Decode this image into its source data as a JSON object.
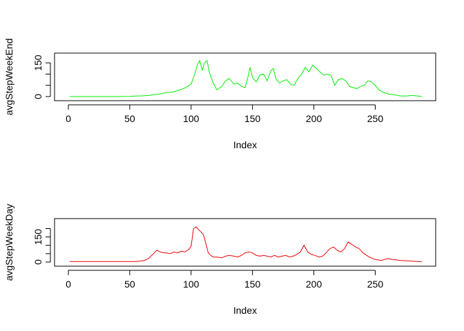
{
  "chart_data": [
    {
      "type": "line",
      "color": "#00ee00",
      "xlabel": "Index",
      "ylabel": "avgStepWeekEnd",
      "xlim": [
        0,
        288
      ],
      "ylim": [
        0,
        175
      ],
      "xticks": [
        0,
        50,
        100,
        150,
        200,
        250
      ],
      "yticks": [
        0,
        50,
        100,
        150
      ],
      "ytick_labels": [
        "0",
        "",
        "",
        "150"
      ],
      "x": [
        1,
        10,
        20,
        30,
        40,
        50,
        55,
        60,
        65,
        70,
        75,
        80,
        85,
        90,
        95,
        100,
        103,
        105,
        107,
        109,
        111,
        113,
        115,
        118,
        121,
        125,
        128,
        131,
        135,
        138,
        141,
        144,
        146,
        148,
        150,
        153,
        156,
        159,
        162,
        165,
        167,
        169,
        172,
        175,
        178,
        181,
        184,
        187,
        190,
        193,
        196,
        199,
        202,
        205,
        208,
        211,
        214,
        217,
        220,
        223,
        226,
        229,
        232,
        235,
        238,
        241,
        244,
        247,
        250,
        253,
        256,
        260,
        265,
        270,
        275,
        280,
        285,
        288
      ],
      "values": [
        0,
        0,
        0,
        0,
        0,
        1,
        2,
        3,
        5,
        8,
        12,
        18,
        20,
        28,
        38,
        55,
        100,
        140,
        160,
        118,
        150,
        160,
        105,
        60,
        30,
        45,
        70,
        80,
        55,
        60,
        45,
        40,
        80,
        130,
        85,
        65,
        95,
        100,
        70,
        115,
        125,
        80,
        60,
        70,
        75,
        55,
        50,
        80,
        100,
        130,
        110,
        140,
        125,
        110,
        95,
        100,
        95,
        50,
        75,
        80,
        70,
        45,
        40,
        35,
        45,
        50,
        70,
        65,
        50,
        30,
        20,
        12,
        8,
        3,
        2,
        5,
        2,
        0
      ]
    },
    {
      "type": "line",
      "color": "#ee0000",
      "xlabel": "Index",
      "ylabel": "avgStepWeekDay",
      "xlim": [
        0,
        288
      ],
      "ylim": [
        0,
        235
      ],
      "xticks": [
        0,
        50,
        100,
        150,
        200,
        250
      ],
      "yticks": [
        0,
        50,
        100,
        150,
        200
      ],
      "ytick_labels": [
        "0",
        "",
        "",
        "150",
        ""
      ],
      "x": [
        1,
        10,
        20,
        30,
        40,
        50,
        55,
        58,
        62,
        65,
        68,
        70,
        72,
        75,
        78,
        80,
        83,
        86,
        89,
        92,
        95,
        98,
        100,
        102,
        104,
        106,
        108,
        110,
        112,
        114,
        116,
        118,
        121,
        125,
        128,
        131,
        135,
        138,
        141,
        144,
        147,
        150,
        153,
        156,
        159,
        162,
        165,
        168,
        171,
        174,
        177,
        180,
        183,
        186,
        189,
        192,
        195,
        198,
        201,
        204,
        207,
        210,
        213,
        216,
        219,
        222,
        225,
        228,
        231,
        234,
        237,
        240,
        245,
        250,
        255,
        260,
        265,
        270,
        275,
        280,
        285,
        288
      ],
      "values": [
        3,
        3,
        3,
        3,
        3,
        3,
        3,
        5,
        10,
        20,
        40,
        55,
        70,
        60,
        55,
        55,
        50,
        60,
        55,
        65,
        60,
        75,
        95,
        200,
        210,
        195,
        180,
        165,
        110,
        55,
        40,
        30,
        30,
        25,
        35,
        40,
        35,
        30,
        40,
        55,
        60,
        55,
        40,
        35,
        40,
        35,
        30,
        40,
        30,
        35,
        40,
        30,
        35,
        45,
        60,
        100,
        60,
        45,
        40,
        30,
        35,
        55,
        80,
        90,
        70,
        60,
        80,
        120,
        105,
        90,
        80,
        55,
        30,
        15,
        10,
        20,
        15,
        10,
        8,
        5,
        3,
        2
      ]
    }
  ]
}
